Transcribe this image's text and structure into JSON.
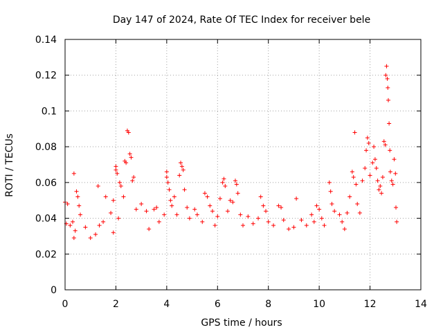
{
  "chart_data": {
    "type": "scatter",
    "title": "Day 147 of 2024, Rate Of TEC Index for receiver bele",
    "xlabel": "GPS time / hours",
    "ylabel": "ROTI / TECUs",
    "xlim": [
      0,
      14
    ],
    "ylim": [
      0,
      0.14
    ],
    "xticks": [
      "0",
      "2",
      "4",
      "6",
      "8",
      "10",
      "12",
      "14"
    ],
    "yticks": [
      "0",
      "0.02",
      "0.04",
      "0.06",
      "0.08",
      "0.1",
      "0.12",
      "0.14"
    ],
    "grid": true,
    "marker": "+",
    "series": [
      {
        "color": "#ff0000",
        "points": [
          [
            0.0,
            0.049
          ],
          [
            0.05,
            0.037
          ],
          [
            0.1,
            0.048
          ],
          [
            0.2,
            0.036
          ],
          [
            0.3,
            0.038
          ],
          [
            0.35,
            0.029
          ],
          [
            0.4,
            0.033
          ],
          [
            0.35,
            0.065
          ],
          [
            0.45,
            0.055
          ],
          [
            0.5,
            0.052
          ],
          [
            0.55,
            0.047
          ],
          [
            0.6,
            0.042
          ],
          [
            0.8,
            0.035
          ],
          [
            1.0,
            0.029
          ],
          [
            1.2,
            0.031
          ],
          [
            1.3,
            0.058
          ],
          [
            1.35,
            0.036
          ],
          [
            1.5,
            0.038
          ],
          [
            1.6,
            0.052
          ],
          [
            1.8,
            0.043
          ],
          [
            1.9,
            0.032
          ],
          [
            1.9,
            0.05
          ],
          [
            2.0,
            0.069
          ],
          [
            2.0,
            0.067
          ],
          [
            2.05,
            0.065
          ],
          [
            2.1,
            0.04
          ],
          [
            2.15,
            0.06
          ],
          [
            2.2,
            0.058
          ],
          [
            2.3,
            0.052
          ],
          [
            2.35,
            0.072
          ],
          [
            2.4,
            0.071
          ],
          [
            2.45,
            0.089
          ],
          [
            2.5,
            0.088
          ],
          [
            2.55,
            0.076
          ],
          [
            2.6,
            0.074
          ],
          [
            2.65,
            0.061
          ],
          [
            2.7,
            0.063
          ],
          [
            2.8,
            0.045
          ],
          [
            3.0,
            0.048
          ],
          [
            3.2,
            0.044
          ],
          [
            3.3,
            0.034
          ],
          [
            3.5,
            0.045
          ],
          [
            3.6,
            0.046
          ],
          [
            3.7,
            0.038
          ],
          [
            3.9,
            0.042
          ],
          [
            4.0,
            0.066
          ],
          [
            4.0,
            0.063
          ],
          [
            4.05,
            0.06
          ],
          [
            4.1,
            0.056
          ],
          [
            4.15,
            0.05
          ],
          [
            4.2,
            0.047
          ],
          [
            4.3,
            0.052
          ],
          [
            4.4,
            0.042
          ],
          [
            4.5,
            0.064
          ],
          [
            4.55,
            0.071
          ],
          [
            4.6,
            0.069
          ],
          [
            4.65,
            0.067
          ],
          [
            4.7,
            0.056
          ],
          [
            4.8,
            0.046
          ],
          [
            4.9,
            0.04
          ],
          [
            5.1,
            0.045
          ],
          [
            5.2,
            0.042
          ],
          [
            5.4,
            0.038
          ],
          [
            5.5,
            0.054
          ],
          [
            5.6,
            0.052
          ],
          [
            5.7,
            0.047
          ],
          [
            5.8,
            0.044
          ],
          [
            5.9,
            0.036
          ],
          [
            6.0,
            0.041
          ],
          [
            6.1,
            0.051
          ],
          [
            6.2,
            0.06
          ],
          [
            6.25,
            0.062
          ],
          [
            6.3,
            0.058
          ],
          [
            6.4,
            0.044
          ],
          [
            6.5,
            0.05
          ],
          [
            6.6,
            0.049
          ],
          [
            6.7,
            0.061
          ],
          [
            6.75,
            0.059
          ],
          [
            6.8,
            0.054
          ],
          [
            6.9,
            0.042
          ],
          [
            7.0,
            0.036
          ],
          [
            7.2,
            0.041
          ],
          [
            7.4,
            0.037
          ],
          [
            7.6,
            0.04
          ],
          [
            7.7,
            0.052
          ],
          [
            7.8,
            0.047
          ],
          [
            7.9,
            0.044
          ],
          [
            8.0,
            0.038
          ],
          [
            8.2,
            0.036
          ],
          [
            8.4,
            0.047
          ],
          [
            8.5,
            0.046
          ],
          [
            8.6,
            0.039
          ],
          [
            8.8,
            0.034
          ],
          [
            9.0,
            0.035
          ],
          [
            9.1,
            0.051
          ],
          [
            9.3,
            0.039
          ],
          [
            9.5,
            0.036
          ],
          [
            9.7,
            0.042
          ],
          [
            9.8,
            0.038
          ],
          [
            9.9,
            0.047
          ],
          [
            10.0,
            0.045
          ],
          [
            10.1,
            0.04
          ],
          [
            10.2,
            0.036
          ],
          [
            10.4,
            0.06
          ],
          [
            10.45,
            0.055
          ],
          [
            10.5,
            0.048
          ],
          [
            10.6,
            0.044
          ],
          [
            10.8,
            0.042
          ],
          [
            10.9,
            0.038
          ],
          [
            11.0,
            0.034
          ],
          [
            11.1,
            0.043
          ],
          [
            11.2,
            0.052
          ],
          [
            11.3,
            0.066
          ],
          [
            11.35,
            0.063
          ],
          [
            11.4,
            0.088
          ],
          [
            11.45,
            0.059
          ],
          [
            11.5,
            0.048
          ],
          [
            11.6,
            0.043
          ],
          [
            11.7,
            0.061
          ],
          [
            11.8,
            0.068
          ],
          [
            11.85,
            0.078
          ],
          [
            11.9,
            0.085
          ],
          [
            11.95,
            0.082
          ],
          [
            12.0,
            0.064
          ],
          [
            12.1,
            0.071
          ],
          [
            12.15,
            0.08
          ],
          [
            12.2,
            0.073
          ],
          [
            12.25,
            0.068
          ],
          [
            12.3,
            0.061
          ],
          [
            12.35,
            0.056
          ],
          [
            12.4,
            0.058
          ],
          [
            12.45,
            0.054
          ],
          [
            12.5,
            0.063
          ],
          [
            12.55,
            0.083
          ],
          [
            12.6,
            0.081
          ],
          [
            12.62,
            0.12
          ],
          [
            12.65,
            0.125
          ],
          [
            12.68,
            0.118
          ],
          [
            12.7,
            0.113
          ],
          [
            12.72,
            0.106
          ],
          [
            12.75,
            0.093
          ],
          [
            12.78,
            0.078
          ],
          [
            12.8,
            0.066
          ],
          [
            12.85,
            0.061
          ],
          [
            12.9,
            0.059
          ],
          [
            12.95,
            0.073
          ],
          [
            13.0,
            0.065
          ],
          [
            13.02,
            0.046
          ],
          [
            13.05,
            0.038
          ]
        ]
      }
    ]
  }
}
